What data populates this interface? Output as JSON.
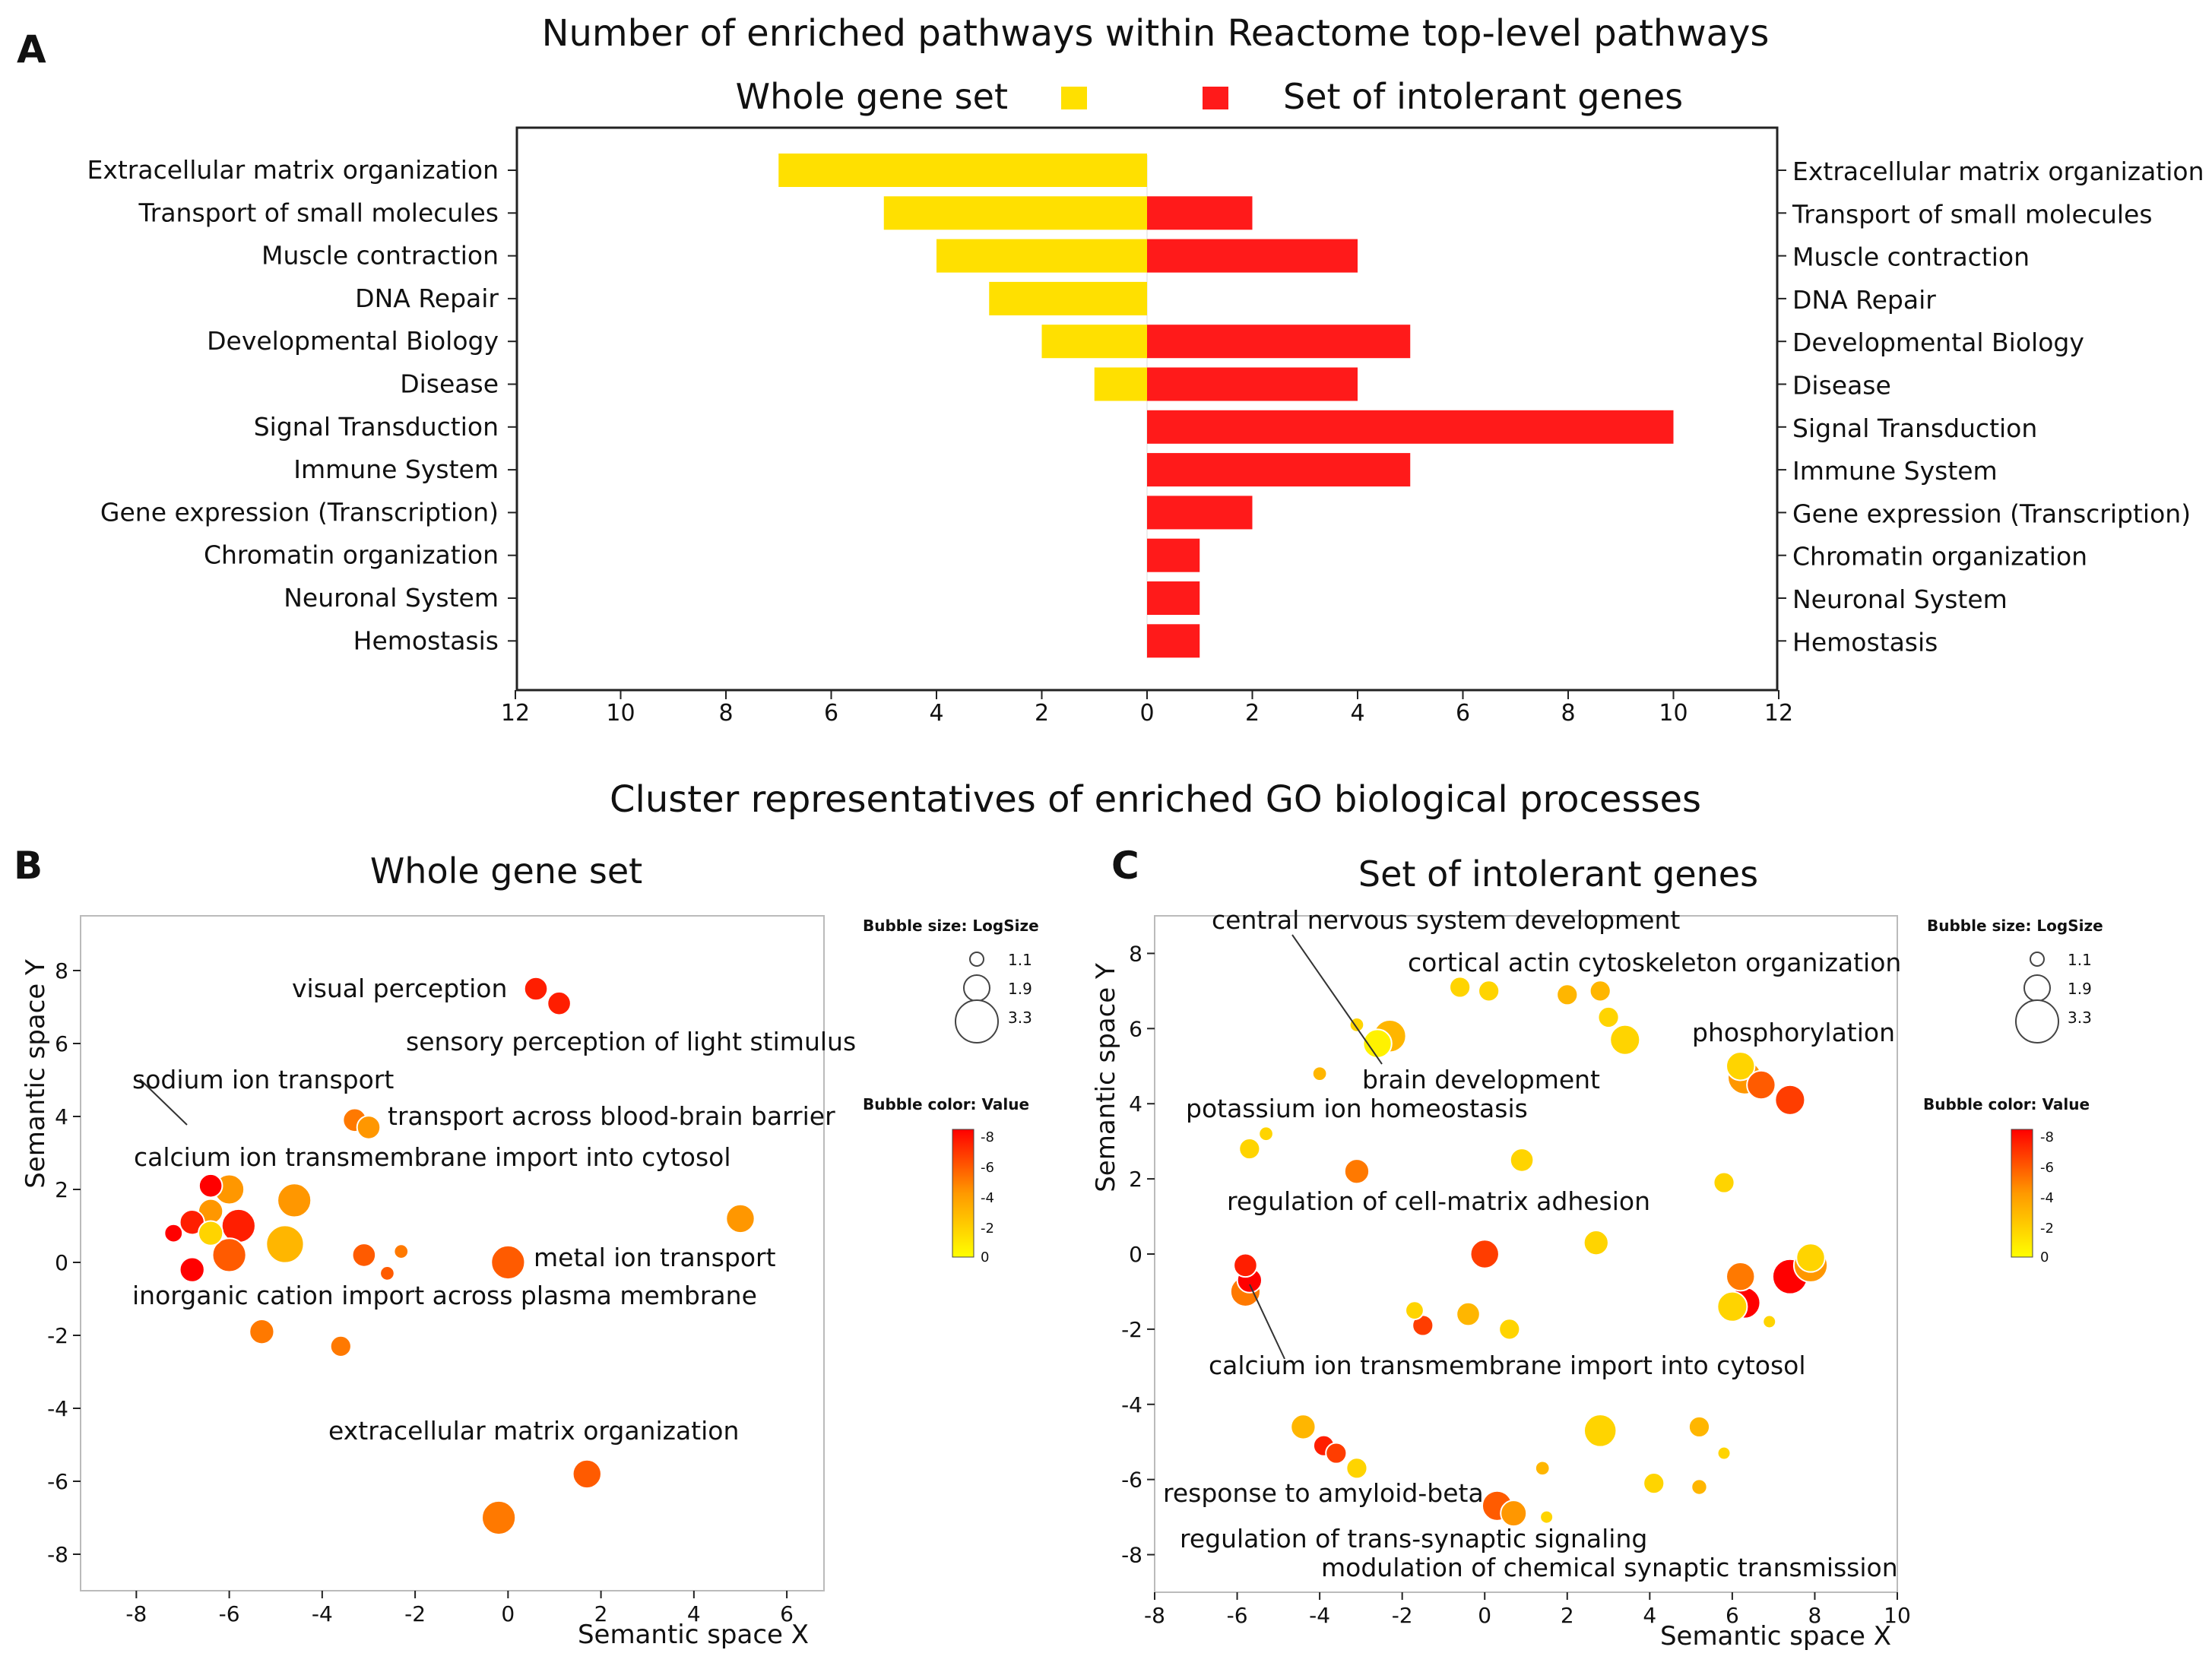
{
  "panel_labels": {
    "a": "A",
    "b": "B",
    "c": "C"
  },
  "colors": {
    "whole": "#FFE000",
    "intolerant": "#FF1A1A",
    "axis": "#222222",
    "bubble_stroke": "#ffffff"
  },
  "chart_data": [
    {
      "type": "bar",
      "title": "Number of enriched pathways within Reactome top-level pathways",
      "categories": [
        "Extracellular matrix organization",
        "Transport of small molecules",
        "Muscle contraction",
        "DNA Repair",
        "Developmental Biology",
        "Disease",
        "Signal Transduction",
        "Immune System",
        "Gene expression  (Transcription)",
        "Chromatin organization",
        "Neuronal System",
        "Hemostasis"
      ],
      "series": [
        {
          "name": "Whole gene set",
          "direction": "left",
          "values": [
            7,
            5,
            4,
            3,
            2,
            1,
            0,
            0,
            0,
            0,
            0,
            0
          ]
        },
        {
          "name": "Set of intolerant genes",
          "direction": "right",
          "values": [
            0,
            2,
            4,
            0,
            5,
            4,
            10,
            5,
            2,
            1,
            1,
            1
          ]
        }
      ],
      "xlim": [
        -12,
        12
      ],
      "xticks": [
        12,
        10,
        8,
        6,
        4,
        2,
        0,
        2,
        4,
        6,
        8,
        10,
        12
      ],
      "legend": "top"
    },
    {
      "type": "scatter",
      "suptitle": "Cluster representatives of enriched GO biological processes",
      "title": "Whole gene set",
      "xlabel": "Semantic space X",
      "ylabel": "Semantic space Y",
      "xlim": [
        -9.2,
        6.8
      ],
      "ylim": [
        -9,
        9.5
      ],
      "xticks": [
        -8,
        -6,
        -4,
        -2,
        0,
        2,
        4,
        6
      ],
      "yticks": [
        8,
        6,
        4,
        2,
        0,
        -2,
        -4,
        -6,
        -8
      ],
      "size_legend": {
        "title": "Bubble size: LogSize",
        "values": [
          "1.1",
          "1.9",
          "3.3"
        ]
      },
      "color_legend": {
        "title": "Bubble color:  Value",
        "ticks": [
          "-8",
          "-6",
          "-4",
          "-2",
          "0"
        ],
        "range": [
          -8,
          0
        ]
      },
      "points": [
        {
          "x": 0.6,
          "y": 7.5,
          "size": 1.8,
          "value": -7
        },
        {
          "x": 1.1,
          "y": 7.1,
          "size": 1.8,
          "value": -7
        },
        {
          "x": -3.3,
          "y": 3.9,
          "size": 1.8,
          "value": -4
        },
        {
          "x": -3.0,
          "y": 3.7,
          "size": 1.8,
          "value": -3
        },
        {
          "x": -6.4,
          "y": 2.1,
          "size": 1.8,
          "value": -8
        },
        {
          "x": -6.0,
          "y": 2.0,
          "size": 2.3,
          "value": -3
        },
        {
          "x": -6.4,
          "y": 1.4,
          "size": 1.9,
          "value": -3
        },
        {
          "x": -6.8,
          "y": 1.1,
          "size": 1.9,
          "value": -7
        },
        {
          "x": -7.2,
          "y": 0.8,
          "size": 1.4,
          "value": -8
        },
        {
          "x": -6.4,
          "y": 0.8,
          "size": 1.9,
          "value": -1
        },
        {
          "x": -5.8,
          "y": 1.0,
          "size": 2.6,
          "value": -7
        },
        {
          "x": -6.0,
          "y": 0.2,
          "size": 2.6,
          "value": -5
        },
        {
          "x": -6.8,
          "y": -0.2,
          "size": 1.9,
          "value": -8
        },
        {
          "x": -4.6,
          "y": 1.7,
          "size": 2.6,
          "value": -3
        },
        {
          "x": -4.8,
          "y": 0.5,
          "size": 2.9,
          "value": -2
        },
        {
          "x": -3.1,
          "y": 0.2,
          "size": 1.8,
          "value": -5
        },
        {
          "x": -2.6,
          "y": -0.3,
          "size": 1.1,
          "value": -5
        },
        {
          "x": -2.3,
          "y": 0.3,
          "size": 1.1,
          "value": -4
        },
        {
          "x": 0.0,
          "y": 0.0,
          "size": 2.6,
          "value": -5
        },
        {
          "x": 5.0,
          "y": 1.2,
          "size": 2.2,
          "value": -3
        },
        {
          "x": -5.3,
          "y": -1.9,
          "size": 1.9,
          "value": -4
        },
        {
          "x": -3.6,
          "y": -2.3,
          "size": 1.6,
          "value": -4
        },
        {
          "x": 1.7,
          "y": -5.8,
          "size": 2.2,
          "value": -5
        },
        {
          "x": -0.2,
          "y": -7.0,
          "size": 2.6,
          "value": -4
        }
      ],
      "labels": [
        "visual perception",
        "sensory perception of light stimulus",
        "sodium ion transport",
        "transport across blood-brain barrier",
        "calcium ion transmembrane import into cytosol",
        "metal ion transport",
        "inorganic cation import across plasma membrane",
        "extracellular matrix organization"
      ]
    },
    {
      "type": "scatter",
      "title": "Set of intolerant genes",
      "xlabel": "Semantic space X",
      "ylabel": "Semantic space Y",
      "xlim": [
        -8,
        10
      ],
      "ylim": [
        -9,
        9
      ],
      "xticks": [
        -8,
        -6,
        -4,
        -2,
        0,
        2,
        4,
        6,
        8,
        10
      ],
      "yticks": [
        8,
        6,
        4,
        2,
        0,
        -2,
        -4,
        -6,
        -8
      ],
      "size_legend": {
        "title": "Bubble size: LogSize",
        "values": [
          "1.1",
          "1.9",
          "3.3"
        ]
      },
      "color_legend": {
        "title": "Bubble color:  Value",
        "ticks": [
          "-8",
          "-6",
          "-4",
          "-2",
          "0"
        ],
        "range": [
          -8,
          0
        ]
      },
      "points": [
        {
          "x": -2.3,
          "y": 5.8,
          "size": 2.5,
          "value": -2
        },
        {
          "x": -2.6,
          "y": 5.6,
          "size": 2.2,
          "value": 0
        },
        {
          "x": -3.1,
          "y": 6.1,
          "size": 1.1,
          "value": -1
        },
        {
          "x": -0.6,
          "y": 7.1,
          "size": 1.6,
          "value": -1
        },
        {
          "x": 0.1,
          "y": 7.0,
          "size": 1.6,
          "value": -1
        },
        {
          "x": 2.0,
          "y": 6.9,
          "size": 1.6,
          "value": -2
        },
        {
          "x": 2.8,
          "y": 7.0,
          "size": 1.6,
          "value": -2
        },
        {
          "x": 3.0,
          "y": 6.3,
          "size": 1.6,
          "value": -1
        },
        {
          "x": 3.4,
          "y": 5.7,
          "size": 2.3,
          "value": -1
        },
        {
          "x": -4.0,
          "y": 4.8,
          "size": 1.1,
          "value": -2
        },
        {
          "x": -5.7,
          "y": 2.8,
          "size": 1.6,
          "value": -1
        },
        {
          "x": -5.3,
          "y": 3.2,
          "size": 1.1,
          "value": -1
        },
        {
          "x": -3.1,
          "y": 2.2,
          "size": 1.9,
          "value": -4
        },
        {
          "x": 0.9,
          "y": 2.5,
          "size": 1.8,
          "value": -1
        },
        {
          "x": 5.8,
          "y": 1.9,
          "size": 1.6,
          "value": -1
        },
        {
          "x": 6.2,
          "y": 5.0,
          "size": 2.2,
          "value": -1
        },
        {
          "x": 6.3,
          "y": 4.7,
          "size": 2.6,
          "value": -3
        },
        {
          "x": 6.7,
          "y": 4.5,
          "size": 2.2,
          "value": -5
        },
        {
          "x": 7.4,
          "y": 4.1,
          "size": 2.3,
          "value": -6
        },
        {
          "x": 0.0,
          "y": 0.0,
          "size": 2.2,
          "value": -6
        },
        {
          "x": 2.7,
          "y": 0.3,
          "size": 1.9,
          "value": -1
        },
        {
          "x": -5.8,
          "y": -0.3,
          "size": 1.8,
          "value": -7
        },
        {
          "x": -5.8,
          "y": -1.0,
          "size": 2.3,
          "value": -4
        },
        {
          "x": -5.7,
          "y": -0.7,
          "size": 1.9,
          "value": -8
        },
        {
          "x": -1.7,
          "y": -1.5,
          "size": 1.4,
          "value": -1
        },
        {
          "x": -1.5,
          "y": -1.9,
          "size": 1.6,
          "value": -6
        },
        {
          "x": -0.4,
          "y": -1.6,
          "size": 1.8,
          "value": -2
        },
        {
          "x": 0.6,
          "y": -2.0,
          "size": 1.6,
          "value": -1
        },
        {
          "x": 6.2,
          "y": -0.6,
          "size": 2.2,
          "value": -4
        },
        {
          "x": 6.0,
          "y": -1.4,
          "size": 2.3,
          "value": -1
        },
        {
          "x": 6.3,
          "y": -1.3,
          "size": 2.4,
          "value": -8
        },
        {
          "x": 6.9,
          "y": -1.8,
          "size": 1.0,
          "value": -1
        },
        {
          "x": 7.4,
          "y": -0.6,
          "size": 2.7,
          "value": -8
        },
        {
          "x": 7.9,
          "y": -0.3,
          "size": 2.6,
          "value": -3
        },
        {
          "x": 7.9,
          "y": -0.1,
          "size": 2.2,
          "value": -1
        },
        {
          "x": -4.4,
          "y": -4.6,
          "size": 1.9,
          "value": -2
        },
        {
          "x": -3.9,
          "y": -5.1,
          "size": 1.6,
          "value": -7
        },
        {
          "x": -3.6,
          "y": -5.3,
          "size": 1.6,
          "value": -6
        },
        {
          "x": -3.1,
          "y": -5.7,
          "size": 1.6,
          "value": -1
        },
        {
          "x": 2.8,
          "y": -4.7,
          "size": 2.5,
          "value": -1
        },
        {
          "x": 5.2,
          "y": -4.6,
          "size": 1.6,
          "value": -2
        },
        {
          "x": 5.8,
          "y": -5.3,
          "size": 1.0,
          "value": -1
        },
        {
          "x": 1.4,
          "y": -5.7,
          "size": 1.1,
          "value": -2
        },
        {
          "x": 4.1,
          "y": -6.1,
          "size": 1.6,
          "value": -1
        },
        {
          "x": 5.2,
          "y": -6.2,
          "size": 1.2,
          "value": -2
        },
        {
          "x": 0.3,
          "y": -6.7,
          "size": 2.3,
          "value": -5
        },
        {
          "x": 0.7,
          "y": -6.9,
          "size": 2.0,
          "value": -3
        },
        {
          "x": 1.5,
          "y": -7.0,
          "size": 1.0,
          "value": -1
        }
      ],
      "labels": [
        "central nervous system development",
        "cortical actin cytoskeleton organization",
        "phosphorylation",
        "brain development",
        "potassium ion homeostasis",
        "regulation of cell-matrix adhesion",
        "calcium ion transmembrane import into cytosol",
        "response to amyloid-beta",
        "regulation of trans-synaptic signaling",
        "modulation of chemical synaptic transmission"
      ]
    }
  ]
}
